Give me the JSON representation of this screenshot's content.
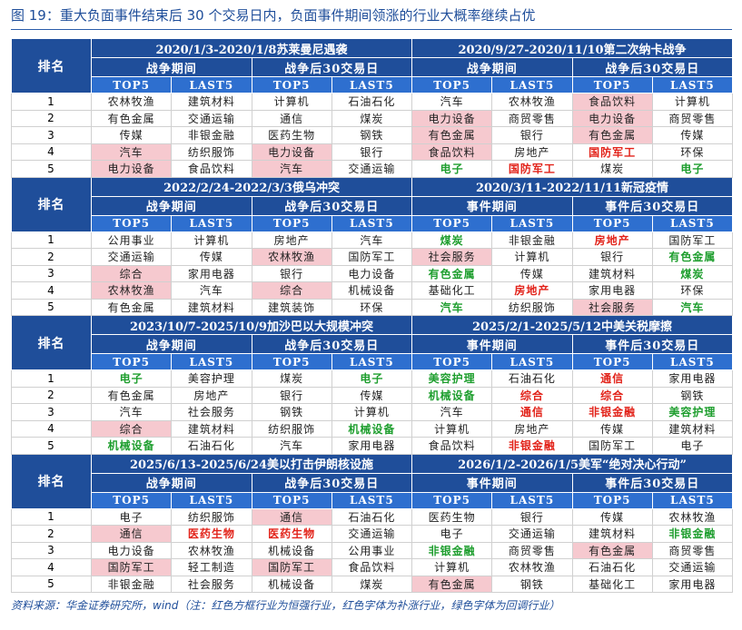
{
  "header": {
    "title": "图 19：重大负面事件结束后 30 个交易日内，负面事件期间领涨的行业大概率继续占优"
  },
  "table": {
    "rank_header": "排名",
    "subheaders": [
      "TOP5",
      "LAST5"
    ],
    "ranks": [
      "1",
      "2",
      "3",
      "4",
      "5"
    ],
    "blocks": [
      {
        "events": [
          "2020/1/3-2020/1/8苏莱曼尼遇袭",
          "2020/9/27-2020/11/10第二次纳卡战争"
        ],
        "periods": [
          "战争期间",
          "战争后30交易日",
          "战争期间",
          "战争后30交易日"
        ],
        "rows": [
          [
            "农林牧渔",
            "建筑材料",
            "计算机",
            "石油石化",
            "汽车",
            "农林牧渔",
            {
              "text": "食品饮料",
              "style": "box"
            },
            "计算机"
          ],
          [
            "有色金属",
            "交通运输",
            "通信",
            "煤炭",
            {
              "text": "电力设备",
              "style": "box"
            },
            "商贸零售",
            {
              "text": "电力设备",
              "style": "box"
            },
            "商贸零售"
          ],
          [
            "传媒",
            "非银金融",
            "医药生物",
            "钢铁",
            {
              "text": "有色金属",
              "style": "box"
            },
            "银行",
            {
              "text": "有色金属",
              "style": "box"
            },
            "传媒"
          ],
          [
            {
              "text": "汽车",
              "style": "box"
            },
            "纺织服饰",
            {
              "text": "电力设备",
              "style": "box"
            },
            "银行",
            {
              "text": "食品饮料",
              "style": "box"
            },
            "房地产",
            {
              "text": "国防军工",
              "style": "red"
            },
            "环保"
          ],
          [
            {
              "text": "电力设备",
              "style": "box"
            },
            "食品饮料",
            {
              "text": "汽车",
              "style": "box"
            },
            "交通运输",
            {
              "text": "电子",
              "style": "green"
            },
            {
              "text": "国防军工",
              "style": "red"
            },
            "煤炭",
            {
              "text": "电子",
              "style": "green"
            }
          ]
        ]
      },
      {
        "events": [
          "2022/2/24-2022/3/3俄乌冲突",
          "2020/3/11-2022/11/11新冠疫情"
        ],
        "periods": [
          "战争期间",
          "战争后30交易日",
          "事件期间",
          "事件后30交易日"
        ],
        "rows": [
          [
            "公用事业",
            "计算机",
            "房地产",
            "汽车",
            {
              "text": "煤炭",
              "style": "green"
            },
            "非银金融",
            {
              "text": "房地产",
              "style": "red"
            },
            "国防军工"
          ],
          [
            "交通运输",
            "传媒",
            {
              "text": "农林牧渔",
              "style": "box"
            },
            "国防军工",
            {
              "text": "社会服务",
              "style": "box"
            },
            "计算机",
            "银行",
            {
              "text": "有色金属",
              "style": "green"
            }
          ],
          [
            {
              "text": "综合",
              "style": "box"
            },
            "家用电器",
            "银行",
            "电力设备",
            {
              "text": "有色金属",
              "style": "green"
            },
            "传媒",
            "建筑材料",
            {
              "text": "煤炭",
              "style": "green"
            }
          ],
          [
            {
              "text": "农林牧渔",
              "style": "box"
            },
            "汽车",
            {
              "text": "综合",
              "style": "box"
            },
            "机械设备",
            "基础化工",
            {
              "text": "房地产",
              "style": "red"
            },
            "家用电器",
            "环保"
          ],
          [
            "有色金属",
            "建筑材料",
            "建筑装饰",
            "环保",
            {
              "text": "汽车",
              "style": "green"
            },
            "纺织服饰",
            {
              "text": "社会服务",
              "style": "box"
            },
            {
              "text": "汽车",
              "style": "green"
            }
          ]
        ]
      },
      {
        "events": [
          "2023/10/7-2025/10/9加沙巴以大规模冲突",
          "2025/2/1-2025/5/12中美关税摩擦"
        ],
        "periods": [
          "战争期间",
          "战争后30交易日",
          "事件期间",
          "事件后30交易日"
        ],
        "rows": [
          [
            {
              "text": "电子",
              "style": "green"
            },
            "美容护理",
            "煤炭",
            {
              "text": "电子",
              "style": "green"
            },
            {
              "text": "美容护理",
              "style": "green"
            },
            "石油石化",
            {
              "text": "通信",
              "style": "red"
            },
            "家用电器"
          ],
          [
            "有色金属",
            "房地产",
            "银行",
            "传媒",
            {
              "text": "机械设备",
              "style": "green"
            },
            {
              "text": "综合",
              "style": "red"
            },
            {
              "text": "综合",
              "style": "red"
            },
            "钢铁"
          ],
          [
            "汽车",
            "社会服务",
            "钢铁",
            "计算机",
            "汽车",
            {
              "text": "通信",
              "style": "red"
            },
            {
              "text": "非银金融",
              "style": "red"
            },
            {
              "text": "美容护理",
              "style": "green"
            }
          ],
          [
            {
              "text": "综合",
              "style": "box"
            },
            "建筑材料",
            "纺织服饰",
            {
              "text": "机械设备",
              "style": "green"
            },
            "计算机",
            "房地产",
            "传媒",
            "建筑材料"
          ],
          [
            {
              "text": "机械设备",
              "style": "green"
            },
            "石油石化",
            "汽车",
            "家用电器",
            "食品饮料",
            {
              "text": "非银金融",
              "style": "red"
            },
            "国防军工",
            "电子"
          ]
        ]
      },
      {
        "events": [
          "2025/6/13-2025/6/24美以打击伊朗核设施",
          "2026/1/2-2026/1/5美军“绝对决心行动”"
        ],
        "periods": [
          "战争期间",
          "战争后30交易日",
          "事件期间",
          "事件后30交易日"
        ],
        "rows": [
          [
            "电子",
            "纺织服饰",
            {
              "text": "通信",
              "style": "box"
            },
            "石油石化",
            "医药生物",
            "银行",
            "传媒",
            "农林牧渔"
          ],
          [
            {
              "text": "通信",
              "style": "box"
            },
            {
              "text": "医药生物",
              "style": "red"
            },
            {
              "text": "医药生物",
              "style": "red"
            },
            "交通运输",
            "电子",
            "交通运输",
            "建筑材料",
            {
              "text": "非银金融",
              "style": "green"
            }
          ],
          [
            "电力设备",
            "农林牧渔",
            "机械设备",
            "公用事业",
            {
              "text": "非银金融",
              "style": "green"
            },
            "商贸零售",
            {
              "text": "有色金属",
              "style": "box"
            },
            "商贸零售"
          ],
          [
            {
              "text": "国防军工",
              "style": "box"
            },
            "轻工制造",
            {
              "text": "国防军工",
              "style": "box"
            },
            "食品饮料",
            "计算机",
            "农林牧渔",
            "石油石化",
            "交通运输"
          ],
          [
            "非银金融",
            "社会服务",
            "机械设备",
            "煤炭",
            {
              "text": "有色金属",
              "style": "box"
            },
            "钢铁",
            "基础化工",
            "家用电器"
          ]
        ]
      }
    ]
  },
  "footer": {
    "note": "资料来源：华金证券研究所，wind（注：红色方框行业为恒强行业，红色字体为补涨行业，绿色字体为回调行业）"
  }
}
